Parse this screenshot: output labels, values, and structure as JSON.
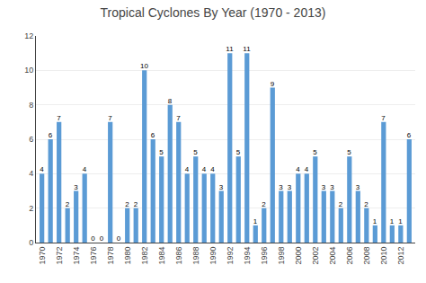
{
  "chart_data": {
    "type": "bar",
    "title": "Tropical Cyclones By Year (1970 - 2013)",
    "categories": [
      "1970",
      null,
      "1972",
      null,
      "1974",
      null,
      "1976",
      null,
      "1978",
      null,
      "1980",
      null,
      "1982",
      null,
      "1984",
      null,
      "1986",
      null,
      "1988",
      null,
      "1990",
      null,
      "1992",
      null,
      "1994",
      null,
      "1996",
      null,
      "1998",
      null,
      "2000",
      null,
      "2002",
      null,
      "2004",
      null,
      "2006",
      null,
      "2008",
      null,
      "2010",
      null,
      "2012",
      null
    ],
    "values": [
      4,
      6,
      7,
      2,
      3,
      4,
      0,
      0,
      7,
      0,
      2,
      2,
      10,
      6,
      5,
      8,
      7,
      4,
      5,
      4,
      4,
      3,
      11,
      5,
      11,
      1,
      2,
      9,
      3,
      3,
      4,
      4,
      5,
      3,
      3,
      2,
      5,
      3,
      2,
      1,
      7,
      1,
      1,
      6
    ],
    "color": "#5B9BD5",
    "ylim": [
      0,
      12
    ],
    "yticks": [
      0,
      2,
      4,
      6,
      8,
      10,
      12
    ],
    "grid": true,
    "data_labels": true
  }
}
